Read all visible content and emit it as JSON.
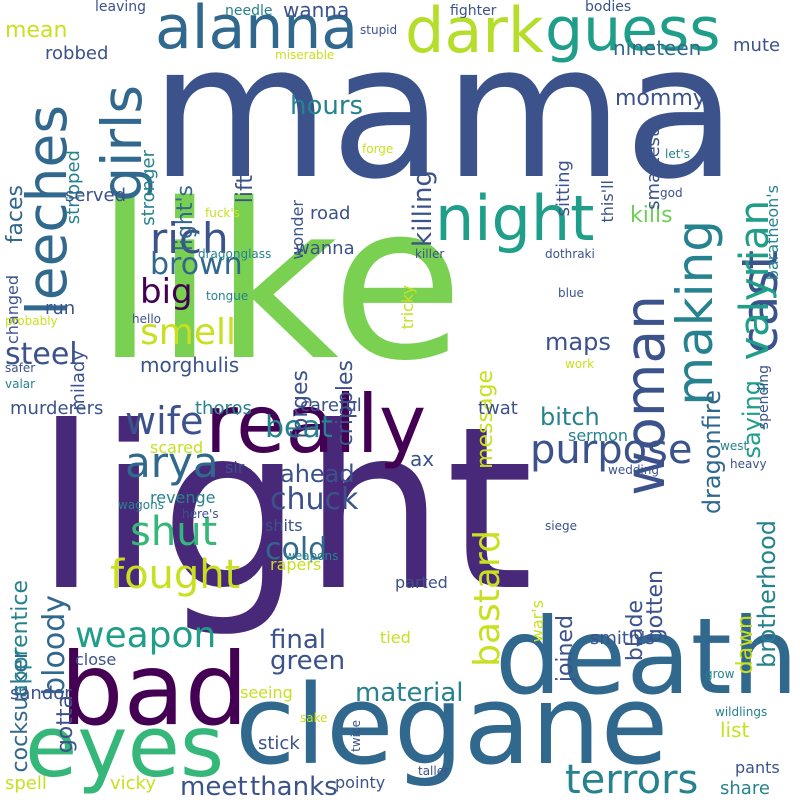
{
  "palette": {
    "indigo": "#482878",
    "blue": "#3b528b",
    "steel": "#31688e",
    "teal": "#26828e",
    "green": "#1f9e89",
    "mint": "#35b779",
    "lime": "#6ece58",
    "yellowgreen": "#b5de2b",
    "yellow": "#c8e020",
    "dark": "#440154"
  },
  "words": [
    {
      "text": "light",
      "color": "#482878",
      "vertical": false
    },
    {
      "text": "mama",
      "color": "#3b528b",
      "vertical": false
    },
    {
      "text": "like",
      "color": "#7ad151",
      "vertical": false
    },
    {
      "text": "death",
      "color": "#31688e",
      "vertical": false
    },
    {
      "text": "clegane",
      "color": "#31688e",
      "vertical": false
    },
    {
      "text": "bad",
      "color": "#440154",
      "vertical": false
    },
    {
      "text": "eyes",
      "color": "#35b779",
      "vertical": false
    },
    {
      "text": "really",
      "color": "#440154",
      "vertical": false
    },
    {
      "text": "alanna",
      "color": "#31688e",
      "vertical": false
    },
    {
      "text": "dark",
      "color": "#b5de2b",
      "vertical": false
    },
    {
      "text": "guess",
      "color": "#1f9e89",
      "vertical": false
    },
    {
      "text": "night",
      "color": "#1f9e89",
      "vertical": false
    },
    {
      "text": "girls",
      "color": "#31688e",
      "vertical": true
    },
    {
      "text": "leeches",
      "color": "#31688e",
      "vertical": true
    },
    {
      "text": "woman",
      "color": "#3b528b",
      "vertical": true
    },
    {
      "text": "making",
      "color": "#26828e",
      "vertical": true
    },
    {
      "text": "cast",
      "color": "#3b528b",
      "vertical": true
    },
    {
      "text": "valyrian",
      "color": "#1f9e89",
      "vertical": true
    },
    {
      "text": "arya",
      "color": "#31688e",
      "vertical": false
    },
    {
      "text": "wife",
      "color": "#3b528b",
      "vertical": false
    },
    {
      "text": "rich",
      "color": "#3b528b",
      "vertical": false
    },
    {
      "text": "purpose",
      "color": "#3b528b",
      "vertical": false
    },
    {
      "text": "terrors",
      "color": "#26828e",
      "vertical": false
    },
    {
      "text": "shut",
      "color": "#35b779",
      "vertical": false
    },
    {
      "text": "fought",
      "color": "#c8e020",
      "vertical": false
    },
    {
      "text": "weapon",
      "color": "#1f9e89",
      "vertical": false
    },
    {
      "text": "smell",
      "color": "#c8e020",
      "vertical": false
    },
    {
      "text": "big",
      "color": "#440154",
      "vertical": false
    },
    {
      "text": "beat",
      "color": "#26828e",
      "vertical": false
    },
    {
      "text": "bastard",
      "color": "#c8e020",
      "vertical": true
    },
    {
      "text": "cold",
      "color": "#31688e",
      "vertical": false
    },
    {
      "text": "brown",
      "color": "#31688e",
      "vertical": false
    },
    {
      "text": "steel",
      "color": "#3b528b",
      "vertical": false
    },
    {
      "text": "chuck",
      "color": "#3b528b",
      "vertical": false
    },
    {
      "text": "bloody",
      "color": "#31688e",
      "vertical": true
    },
    {
      "text": "material",
      "color": "#26828e",
      "vertical": false
    },
    {
      "text": "green",
      "color": "#3b528b",
      "vertical": false
    },
    {
      "text": "final",
      "color": "#3b528b",
      "vertical": false
    },
    {
      "text": "meet",
      "color": "#3b528b",
      "vertical": false
    },
    {
      "text": "thanks",
      "color": "#3b528b",
      "vertical": false
    },
    {
      "text": "hours",
      "color": "#26828e",
      "vertical": false
    },
    {
      "text": "killing",
      "color": "#3b528b",
      "vertical": true
    },
    {
      "text": "bitch",
      "color": "#26828e",
      "vertical": false
    },
    {
      "text": "dragonfire",
      "color": "#31688e",
      "vertical": true
    },
    {
      "text": "saying",
      "color": "#1f9e89",
      "vertical": true
    },
    {
      "text": "brotherhood",
      "color": "#26828e",
      "vertical": true
    },
    {
      "text": "maps",
      "color": "#3b528b",
      "vertical": false
    },
    {
      "text": "ahead",
      "color": "#3b528b",
      "vertical": false
    },
    {
      "text": "kills",
      "color": "#6ece58",
      "vertical": false
    },
    {
      "text": "mommy",
      "color": "#3b528b",
      "vertical": false
    },
    {
      "text": "nineteen",
      "color": "#31688e",
      "vertical": false
    },
    {
      "text": "light's",
      "color": "#31688e",
      "vertical": true
    },
    {
      "text": "lift",
      "color": "#3b528b",
      "vertical": true
    },
    {
      "text": "faces",
      "color": "#31688e",
      "vertical": true
    },
    {
      "text": "mean",
      "color": "#c8e020",
      "vertical": false
    },
    {
      "text": "morghulis",
      "color": "#3b528b",
      "vertical": false
    },
    {
      "text": "forges",
      "color": "#3b528b",
      "vertical": true
    },
    {
      "text": "cripples",
      "color": "#3b528b",
      "vertical": true
    },
    {
      "text": "message",
      "color": "#c8e020",
      "vertical": true
    },
    {
      "text": "gotten",
      "color": "#3b528b",
      "vertical": true
    },
    {
      "text": "blade",
      "color": "#3b528b",
      "vertical": true
    },
    {
      "text": "joined",
      "color": "#3b528b",
      "vertical": true
    },
    {
      "text": "dawn",
      "color": "#c8e020",
      "vertical": true
    },
    {
      "text": "ax",
      "color": "#3b528b",
      "vertical": false
    },
    {
      "text": "cocksucker",
      "color": "#31688e",
      "vertical": true
    },
    {
      "text": "apprentice",
      "color": "#26828e",
      "vertical": true
    },
    {
      "text": "gotta",
      "color": "#3b528b",
      "vertical": true
    },
    {
      "text": "list",
      "color": "#c8e020",
      "vertical": false
    },
    {
      "text": "sandor",
      "color": "#3b528b",
      "vertical": false
    },
    {
      "text": "wanna",
      "color": "#3b528b",
      "vertical": false
    },
    {
      "text": "mute",
      "color": "#3b528b",
      "vertical": false
    },
    {
      "text": "robbed",
      "color": "#3b528b",
      "vertical": false
    },
    {
      "text": "stripped",
      "color": "#26828e",
      "vertical": true
    },
    {
      "text": "stronger",
      "color": "#26828e",
      "vertical": true
    },
    {
      "text": "served",
      "color": "#3b528b",
      "vertical": false
    },
    {
      "text": "road",
      "color": "#3b528b",
      "vertical": false
    },
    {
      "text": "wanna",
      "color": "#3b528b",
      "vertical": false
    },
    {
      "text": "milady",
      "color": "#3b528b",
      "vertical": true
    },
    {
      "text": "run",
      "color": "#3b528b",
      "vertical": false
    },
    {
      "text": "murderers",
      "color": "#3b528b",
      "vertical": false
    },
    {
      "text": "thoros",
      "color": "#26828e",
      "vertical": false
    },
    {
      "text": "careful",
      "color": "#3b528b",
      "vertical": false
    },
    {
      "text": "twat",
      "color": "#3b528b",
      "vertical": false
    },
    {
      "text": "sermon",
      "color": "#26828e",
      "vertical": false
    },
    {
      "text": "scared",
      "color": "#c8e020",
      "vertical": false
    },
    {
      "text": "sir",
      "color": "#3b528b",
      "vertical": false
    },
    {
      "text": "revenge",
      "color": "#26828e",
      "vertical": false
    },
    {
      "text": "shits",
      "color": "#3b528b",
      "vertical": false
    },
    {
      "text": "rapers",
      "color": "#c8e020",
      "vertical": false
    },
    {
      "text": "parted",
      "color": "#3b528b",
      "vertical": false
    },
    {
      "text": "war's",
      "color": "#c8e020",
      "vertical": true
    },
    {
      "text": "tied",
      "color": "#c8e020",
      "vertical": false
    },
    {
      "text": "smith's",
      "color": "#3b528b",
      "vertical": false
    },
    {
      "text": "stick",
      "color": "#3b528b",
      "vertical": false
    },
    {
      "text": "seeing",
      "color": "#c8e020",
      "vertical": false
    },
    {
      "text": "close",
      "color": "#3b528b",
      "vertical": false
    },
    {
      "text": "pointy",
      "color": "#3b528b",
      "vertical": false
    },
    {
      "text": "pants",
      "color": "#3b528b",
      "vertical": false
    },
    {
      "text": "share",
      "color": "#26828e",
      "vertical": false
    },
    {
      "text": "spell",
      "color": "#c8e020",
      "vertical": false
    },
    {
      "text": "vicky",
      "color": "#c8e020",
      "vertical": false
    },
    {
      "text": "sitting",
      "color": "#3b528b",
      "vertical": true
    },
    {
      "text": "smartest",
      "color": "#3b528b",
      "vertical": true
    },
    {
      "text": "this'll",
      "color": "#3b528b",
      "vertical": true
    },
    {
      "text": "wonder",
      "color": "#3b528b",
      "vertical": true
    },
    {
      "text": "tricky",
      "color": "#c8e020",
      "vertical": true
    },
    {
      "text": "changed",
      "color": "#3b528b",
      "vertical": true
    },
    {
      "text": "spending",
      "color": "#3b528b",
      "vertical": true
    },
    {
      "text": "baratheon's",
      "color": "#26828e",
      "vertical": true
    },
    {
      "text": "leaving",
      "color": "#3b528b",
      "vertical": false
    },
    {
      "text": "needle",
      "color": "#26828e",
      "vertical": false
    },
    {
      "text": "fighter",
      "color": "#3b528b",
      "vertical": false
    },
    {
      "text": "bodies",
      "color": "#3b528b",
      "vertical": false
    },
    {
      "text": "stupid",
      "color": "#3b528b",
      "vertical": false
    },
    {
      "text": "miserable",
      "color": "#c8e020",
      "vertical": false
    },
    {
      "text": "forge",
      "color": "#c8e020",
      "vertical": false
    },
    {
      "text": "god",
      "color": "#3b528b",
      "vertical": false
    },
    {
      "text": "let's",
      "color": "#26828e",
      "vertical": false
    },
    {
      "text": "fuck's",
      "color": "#c8e020",
      "vertical": false
    },
    {
      "text": "dragonglass",
      "color": "#26828e",
      "vertical": false
    },
    {
      "text": "killer",
      "color": "#3b528b",
      "vertical": false
    },
    {
      "text": "dothraki",
      "color": "#3b528b",
      "vertical": false
    },
    {
      "text": "tongue",
      "color": "#26828e",
      "vertical": false
    },
    {
      "text": "blue",
      "color": "#3b528b",
      "vertical": false
    },
    {
      "text": "hello",
      "color": "#3b528b",
      "vertical": false
    },
    {
      "text": "probably",
      "color": "#c8e020",
      "vertical": false
    },
    {
      "text": "safer",
      "color": "#3b528b",
      "vertical": false
    },
    {
      "text": "valar",
      "color": "#26828e",
      "vertical": false
    },
    {
      "text": "work",
      "color": "#c8e020",
      "vertical": false
    },
    {
      "text": "west",
      "color": "#26828e",
      "vertical": false
    },
    {
      "text": "wedding",
      "color": "#3b528b",
      "vertical": false
    },
    {
      "text": "heavy",
      "color": "#3b528b",
      "vertical": false
    },
    {
      "text": "wagons",
      "color": "#26828e",
      "vertical": false
    },
    {
      "text": "here's",
      "color": "#3b528b",
      "vertical": false
    },
    {
      "text": "siege",
      "color": "#3b528b",
      "vertical": false
    },
    {
      "text": "weapons",
      "color": "#26828e",
      "vertical": false
    },
    {
      "text": "grow",
      "color": "#26828e",
      "vertical": false
    },
    {
      "text": "sake",
      "color": "#c8e020",
      "vertical": false
    },
    {
      "text": "wildlings",
      "color": "#26828e",
      "vertical": false
    },
    {
      "text": "twice",
      "color": "#3b528b",
      "vertical": true
    },
    {
      "text": "taller",
      "color": "#3b528b",
      "vertical": false
    }
  ]
}
